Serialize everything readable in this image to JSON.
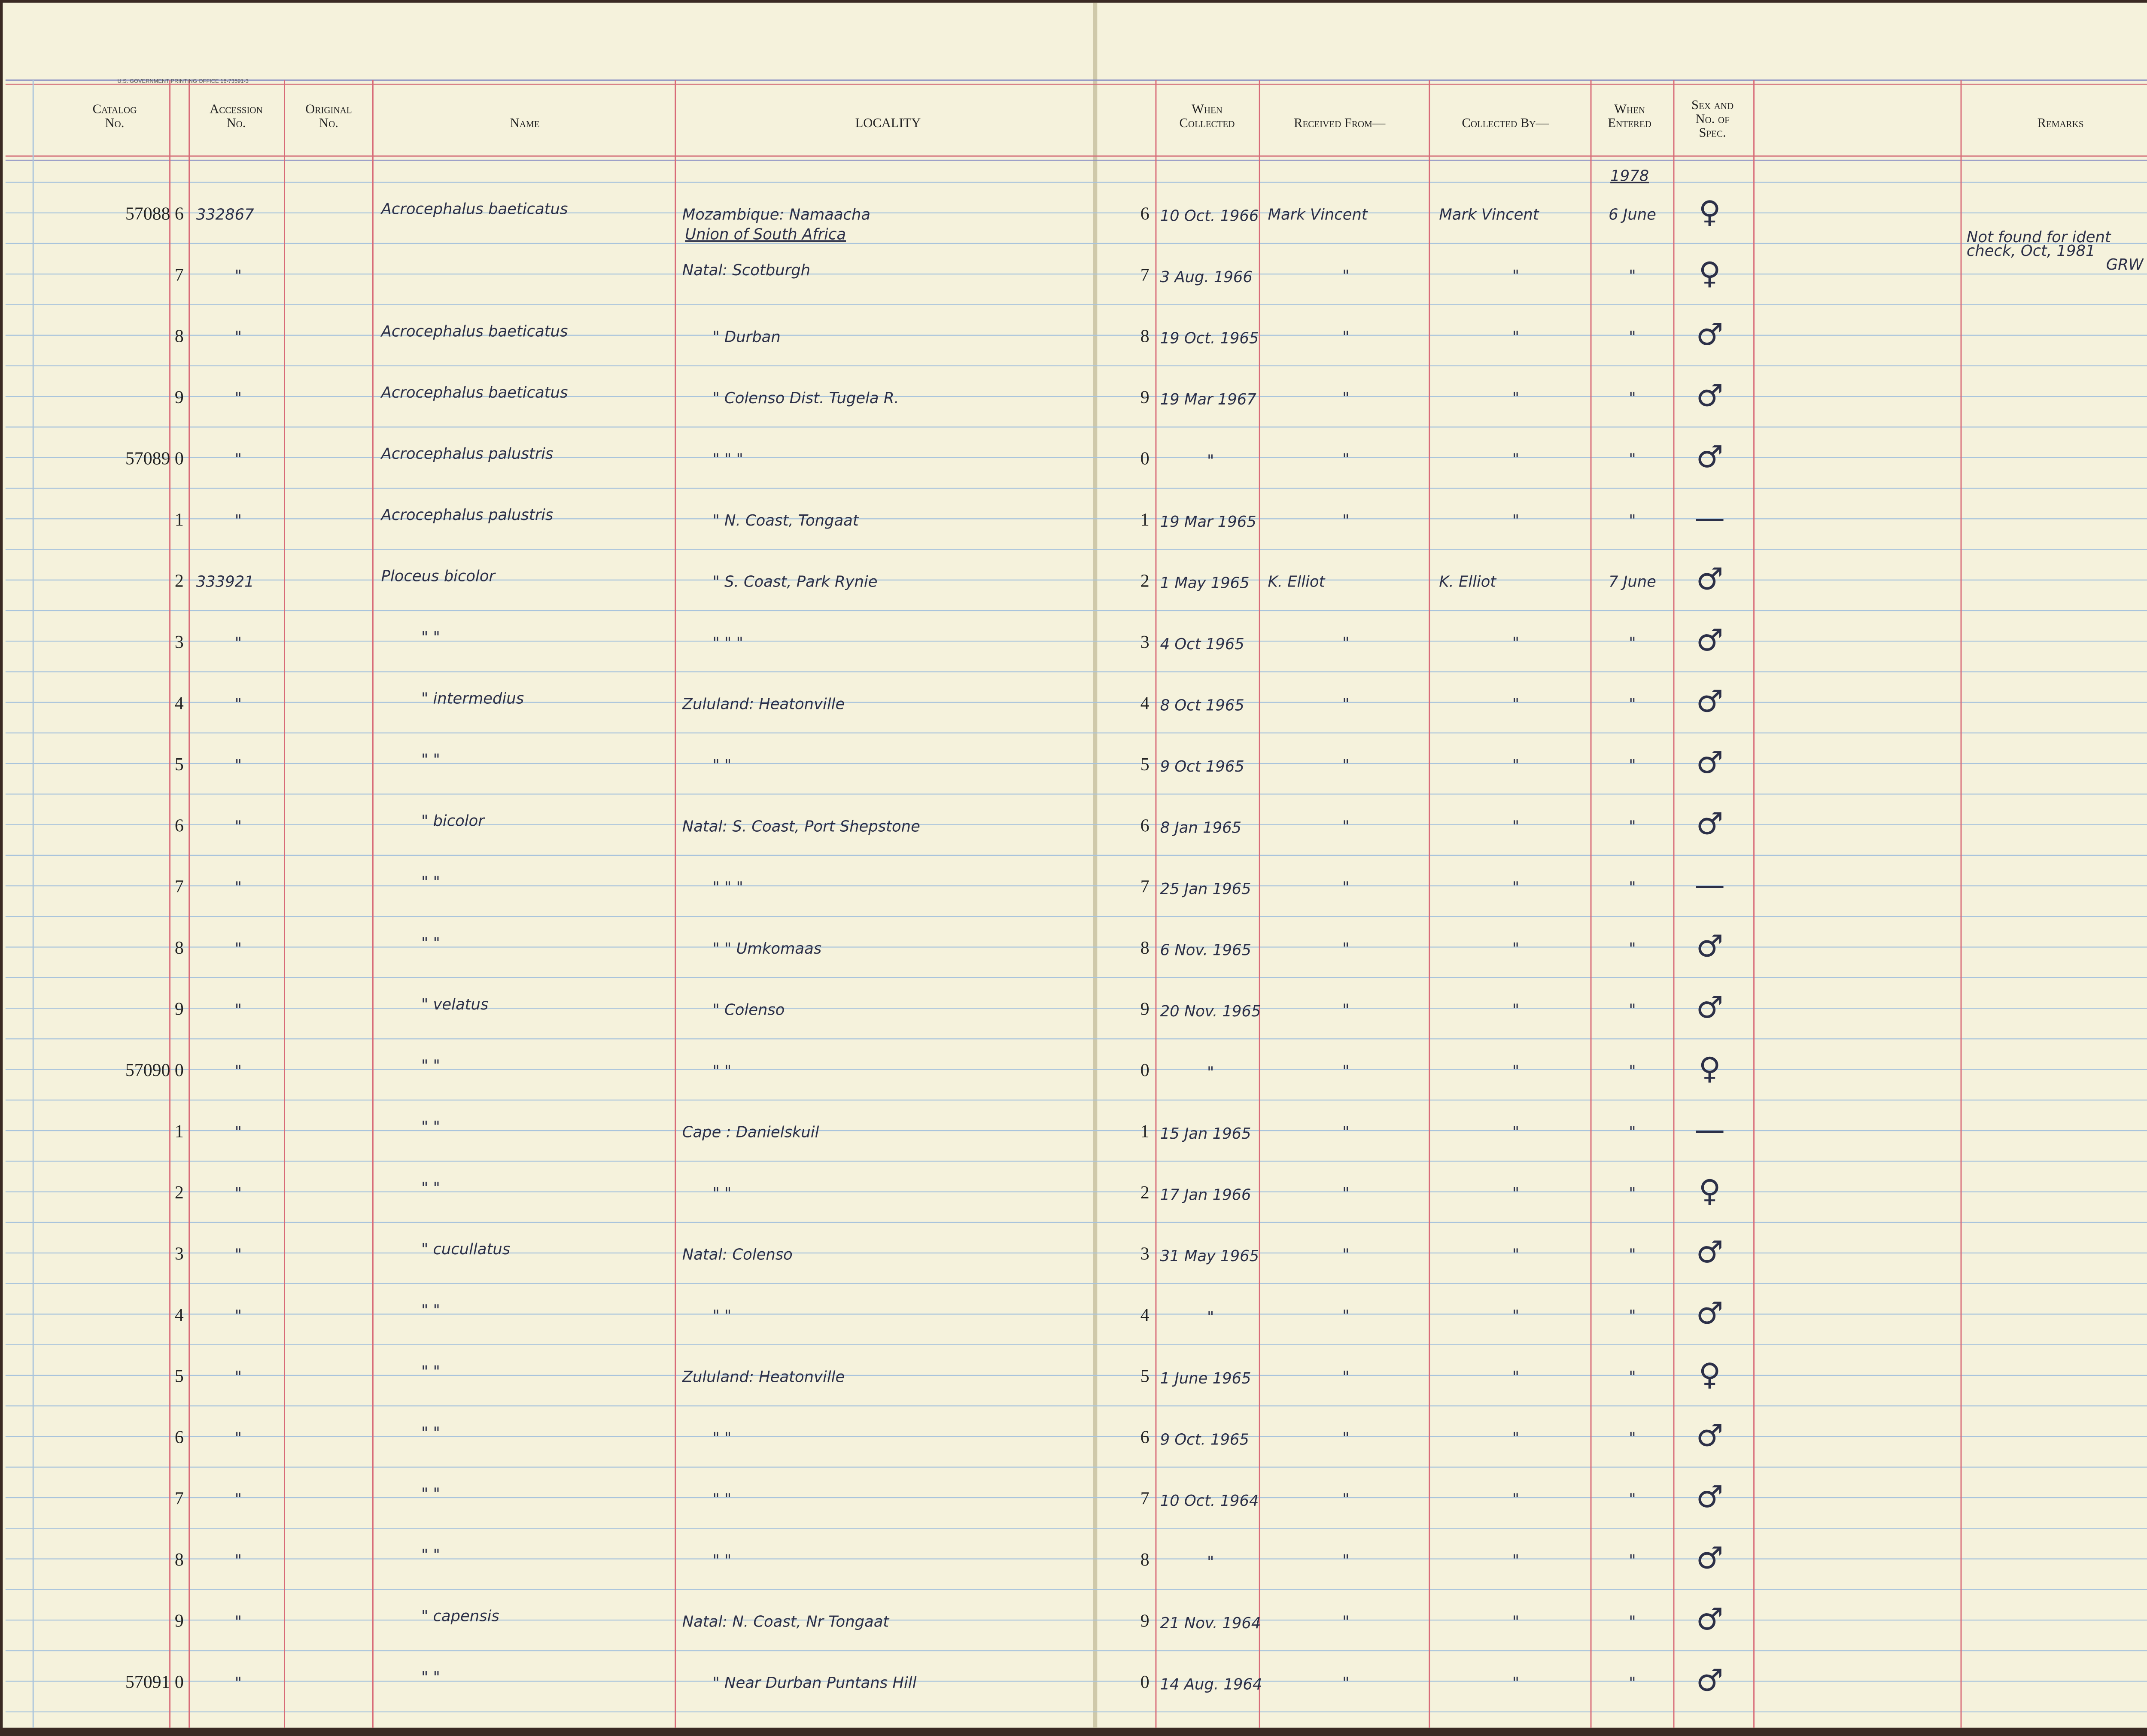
{
  "printer": "U.S. GOVERNMENT PRINTING OFFICE   16-73591-3",
  "headers": {
    "catalog": "Catalog No.",
    "accession": "Accession No.",
    "original": "Original No.",
    "name": "Name",
    "locality": "LOCALITY",
    "when_collected": "When Collected",
    "received_from": "Received From—",
    "collected_by": "Collected By—",
    "when_entered": "When Entered",
    "sex": "Sex and No. of Spec.",
    "remarks": "Remarks"
  },
  "rows": [
    {
      "catalog": "57088 6",
      "accession": "332867",
      "name": "Acrocephalus baeticatus",
      "locality": "Mozambique: Namaacha",
      "day": "6",
      "collected": "10 Oct. 1966",
      "received": "Mark Vincent",
      "collected_by": "Mark Vincent",
      "entered_year": "1978",
      "entered": "6 June",
      "sex": "♀"
    },
    {
      "catalog": "7",
      "accession": "\"",
      "locality_note": "Union of South Africa",
      "locality": "Natal: Scotburgh",
      "day": "7",
      "collected": "3 Aug. 1966",
      "received": "\"",
      "collected_by": "\"",
      "entered": "\"",
      "sex": "♀",
      "remarks": [
        "Not found for ident",
        "check, Oct, 1981",
        "GRW"
      ]
    },
    {
      "catalog": "8",
      "accession": "\"",
      "name": "Acrocephalus baeticatus",
      "locality": "\"   Durban",
      "day": "8",
      "collected": "19 Oct. 1965",
      "received": "\"",
      "collected_by": "\"",
      "entered": "\"",
      "sex": "♂"
    },
    {
      "catalog": "9",
      "accession": "\"",
      "name": "Acrocephalus baeticatus",
      "locality": "\"   Colenso Dist. Tugela R.",
      "day": "9",
      "collected": "19 Mar 1967",
      "received": "\"",
      "collected_by": "\"",
      "entered": "\"",
      "sex": "♂"
    },
    {
      "catalog": "57089 0",
      "accession": "\"",
      "name": "Acrocephalus palustris",
      "locality": "\"        \"          \"",
      "day": "0",
      "collected": "\"",
      "received": "\"",
      "collected_by": "\"",
      "entered": "\"",
      "sex": "♂"
    },
    {
      "catalog": "1",
      "accession": "\"",
      "name": "Acrocephalus palustris",
      "locality": "\"   N. Coast, Tongaat",
      "day": "1",
      "collected": "19 Mar 1965",
      "received": "\"",
      "collected_by": "\"",
      "entered": "\"",
      "sex": "—"
    },
    {
      "catalog": "2",
      "accession": "333921",
      "name": "Ploceus bicolor",
      "locality": "\"   S. Coast, Park Rynie",
      "day": "2",
      "collected": "1 May 1965",
      "received": "K. Elliot",
      "collected_by": "K. Elliot",
      "entered": "7 June",
      "sex": "♂"
    },
    {
      "catalog": "3",
      "accession": "\"",
      "name": "\"       \"",
      "locality": "\"        \"          \"",
      "day": "3",
      "collected": "4 Oct 1965",
      "received": "\"",
      "collected_by": "\"",
      "entered": "\"",
      "sex": "♂"
    },
    {
      "catalog": "4",
      "accession": "\"",
      "name": "\"   intermedius",
      "locality": "Zululand: Heatonville",
      "day": "4",
      "collected": "8 Oct 1965",
      "received": "\"",
      "collected_by": "\"",
      "entered": "\"",
      "sex": "♂"
    },
    {
      "catalog": "5",
      "accession": "\"",
      "name": "\"       \"",
      "locality": "\"        \"",
      "day": "5",
      "collected": "9 Oct 1965",
      "received": "\"",
      "collected_by": "\"",
      "entered": "\"",
      "sex": "♂"
    },
    {
      "catalog": "6",
      "accession": "\"",
      "name": "\"   bicolor",
      "locality": "Natal: S. Coast, Port Shepstone",
      "day": "6",
      "collected": "8 Jan 1965",
      "received": "\"",
      "collected_by": "\"",
      "entered": "\"",
      "sex": "♂"
    },
    {
      "catalog": "7",
      "accession": "\"",
      "name": "\"       \"",
      "locality": "\"        \"          \"",
      "day": "7",
      "collected": "25 Jan 1965",
      "received": "\"",
      "collected_by": "\"",
      "entered": "\"",
      "sex": "—"
    },
    {
      "catalog": "8",
      "accession": "\"",
      "name": "\"       \"",
      "locality": "\"        \"     Umkomaas",
      "day": "8",
      "collected": "6 Nov. 1965",
      "received": "\"",
      "collected_by": "\"",
      "entered": "\"",
      "sex": "♂"
    },
    {
      "catalog": "9",
      "accession": "\"",
      "name": "\"   velatus",
      "locality": "\"      Colenso",
      "day": "9",
      "collected": "20 Nov. 1965",
      "received": "\"",
      "collected_by": "\"",
      "entered": "\"",
      "sex": "♂"
    },
    {
      "catalog": "57090 0",
      "accession": "\"",
      "name": "\"       \"",
      "locality": "\"        \"",
      "day": "0",
      "collected": "\"",
      "received": "\"",
      "collected_by": "\"",
      "entered": "\"",
      "sex": "♀"
    },
    {
      "catalog": "1",
      "accession": "\"",
      "name": "\"       \"",
      "locality": "Cape :  Danielskuil",
      "day": "1",
      "collected": "15 Jan 1965",
      "received": "\"",
      "collected_by": "\"",
      "entered": "\"",
      "sex": "—"
    },
    {
      "catalog": "2",
      "accession": "\"",
      "name": "\"       \"",
      "locality": "\"        \"",
      "day": "2",
      "collected": "17 Jan 1966",
      "received": "\"",
      "collected_by": "\"",
      "entered": "\"",
      "sex": "♀"
    },
    {
      "catalog": "3",
      "accession": "\"",
      "name": "\"   cucullatus",
      "locality": "Natal: Colenso",
      "day": "3",
      "collected": "31 May 1965",
      "received": "\"",
      "collected_by": "\"",
      "entered": "\"",
      "sex": "♂"
    },
    {
      "catalog": "4",
      "accession": "\"",
      "name": "\"       \"",
      "locality": "\"        \"",
      "day": "4",
      "collected": "\"",
      "received": "\"",
      "collected_by": "\"",
      "entered": "\"",
      "sex": "♂"
    },
    {
      "catalog": "5",
      "accession": "\"",
      "name": "\"       \"",
      "locality": "Zululand: Heatonville",
      "day": "5",
      "collected": "1 June 1965",
      "received": "\"",
      "collected_by": "\"",
      "entered": "\"",
      "sex": "♀"
    },
    {
      "catalog": "6",
      "accession": "\"",
      "name": "\"       \"",
      "locality": "\"        \"",
      "day": "6",
      "collected": "9 Oct. 1965",
      "received": "\"",
      "collected_by": "\"",
      "entered": "\"",
      "sex": "♂"
    },
    {
      "catalog": "7",
      "accession": "\"",
      "name": "\"       \"",
      "locality": "\"        \"",
      "day": "7",
      "collected": "10 Oct. 1964",
      "received": "\"",
      "collected_by": "\"",
      "entered": "\"",
      "sex": "♂"
    },
    {
      "catalog": "8",
      "accession": "\"",
      "name": "\"       \"",
      "locality": "\"        \"",
      "day": "8",
      "collected": "\"",
      "received": "\"",
      "collected_by": "\"",
      "entered": "\"",
      "sex": "♂"
    },
    {
      "catalog": "9",
      "accession": "\"",
      "name": "\"   capensis",
      "locality": "Natal: N. Coast, Nr Tongaat",
      "day": "9",
      "collected": "21 Nov. 1964",
      "received": "\"",
      "collected_by": "\"",
      "entered": "\"",
      "sex": "♂"
    },
    {
      "catalog": "57091 0",
      "accession": "\"",
      "name": "\"       \"",
      "locality": "\"    Near Durban Puntans Hill",
      "day": "0",
      "collected": "14 Aug. 1964",
      "received": "\"",
      "collected_by": "\"",
      "entered": "\"",
      "sex": "♂"
    }
  ]
}
